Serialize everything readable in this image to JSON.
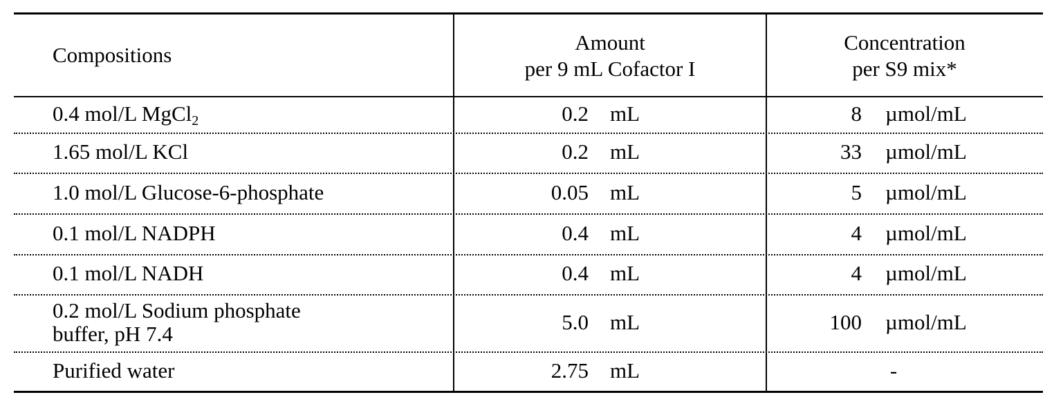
{
  "table": {
    "header": {
      "composition": "Compositions",
      "amount": [
        "Amount",
        "per 9 mL Cofactor I"
      ],
      "concentration": [
        "Concentration",
        "per S9 mix*"
      ]
    },
    "rows": [
      {
        "composition": {
          "text": "0.4 mol/L MgCl",
          "sub": "2"
        },
        "amount": "0.2",
        "amount_unit": "mL",
        "concentration": "8",
        "concentration_unit": "µmol/mL"
      },
      {
        "composition": "1.65 mol/L KCl",
        "amount": "0.2",
        "amount_unit": "mL",
        "concentration": "33",
        "concentration_unit": "µmol/mL"
      },
      {
        "composition": "1.0 mol/L Glucose-6-phosphate",
        "amount": "0.05",
        "amount_unit": "mL",
        "concentration": "5",
        "concentration_unit": "µmol/mL"
      },
      {
        "composition": "0.1 mol/L NADPH",
        "amount": "0.4",
        "amount_unit": "mL",
        "concentration": "4",
        "concentration_unit": "µmol/mL"
      },
      {
        "composition": "0.1 mol/L NADH",
        "amount": "0.4",
        "amount_unit": "mL",
        "concentration": "4",
        "concentration_unit": "µmol/mL"
      },
      {
        "composition": [
          "0.2 mol/L Sodium phosphate",
          "buffer, pH 7.4"
        ],
        "amount": "5.0",
        "amount_unit": "mL",
        "concentration": "100",
        "concentration_unit": "µmol/mL"
      },
      {
        "composition": "Purified water",
        "amount": "2.75",
        "amount_unit": "mL",
        "concentration": "-"
      }
    ]
  }
}
